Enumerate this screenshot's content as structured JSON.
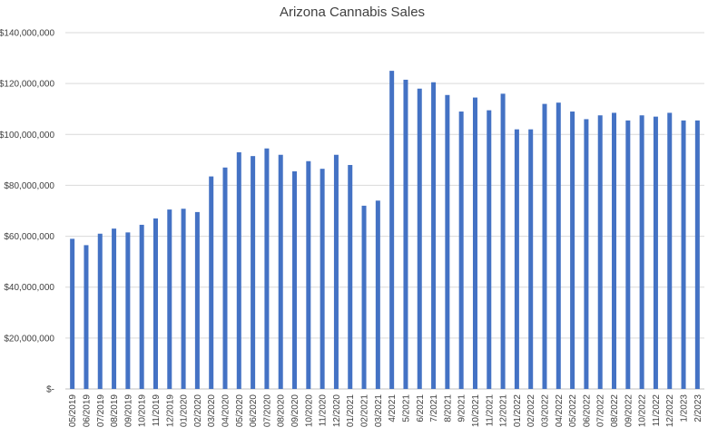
{
  "chart_data": {
    "type": "bar",
    "title": "Arizona Cannabis Sales",
    "xlabel": "",
    "ylabel": "",
    "ylim": [
      0,
      140000000
    ],
    "grid": true,
    "legend": "none",
    "bar_color": "#4472c4",
    "y_ticks": [
      {
        "value": 0,
        "label": "$-"
      },
      {
        "value": 20000000,
        "label": "$20,000,000"
      },
      {
        "value": 40000000,
        "label": "$40,000,000"
      },
      {
        "value": 60000000,
        "label": "$60,000,000"
      },
      {
        "value": 80000000,
        "label": "$80,000,000"
      },
      {
        "value": 100000000,
        "label": "$100,000,000"
      },
      {
        "value": 120000000,
        "label": "$120,000,000"
      },
      {
        "value": 140000000,
        "label": "$140,000,000"
      }
    ],
    "categories": [
      "05/2019",
      "06/2019",
      "07/2019",
      "08/2019",
      "09/2019",
      "10/2019",
      "11/2019",
      "12/2019",
      "01/2020",
      "02/2020",
      "03/2020",
      "04/2020",
      "05/2020",
      "06/2020",
      "07/2020",
      "08/2020",
      "09/2020",
      "10/2020",
      "11/2020",
      "12/2020",
      "01/2021",
      "02/2021",
      "03/2021",
      "4/2021",
      "5/2021",
      "6/2021",
      "7/2021",
      "8/2021",
      "9/2021",
      "10/2021",
      "11/2021",
      "12/2021",
      "01/2022",
      "02/2022",
      "03/2022",
      "04/2022",
      "05/2022",
      "06/2022",
      "07/2022",
      "08/2022",
      "09/2022",
      "10/2022",
      "11/2022",
      "12/2022",
      "1/2023",
      "2/2023"
    ],
    "values": [
      59000000,
      56500000,
      61000000,
      63000000,
      61500000,
      64500000,
      67000000,
      70500000,
      70800000,
      69500000,
      83500000,
      87000000,
      93000000,
      91500000,
      94500000,
      92000000,
      85500000,
      89500000,
      86500000,
      92000000,
      88000000,
      72000000,
      74000000,
      125000000,
      121500000,
      118000000,
      120500000,
      115500000,
      109000000,
      114500000,
      109500000,
      116000000,
      102000000,
      102000000,
      112000000,
      112500000,
      109000000,
      106000000,
      107500000,
      108500000,
      105500000,
      107500000,
      107000000,
      108500000,
      105500000,
      105500000
    ]
  }
}
